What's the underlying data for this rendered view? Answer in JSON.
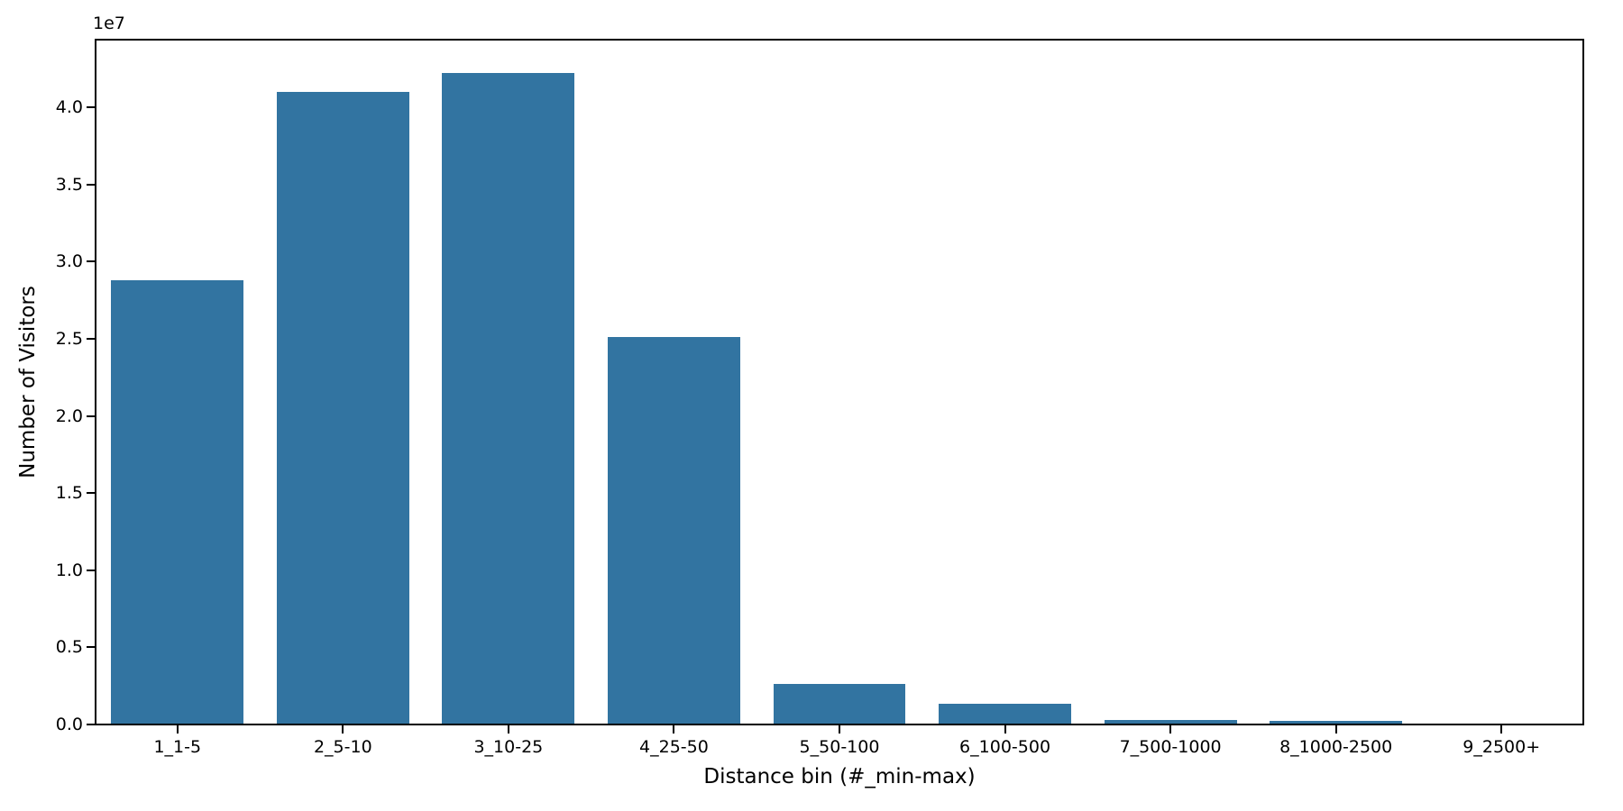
{
  "chart_data": {
    "type": "bar",
    "title": "",
    "xlabel": "Distance bin (#_min-max)",
    "ylabel": "Number of Visitors",
    "y_offset_text": "1e7",
    "categories": [
      "1_1-5",
      "2_5-10",
      "3_10-25",
      "4_25-50",
      "5_50-100",
      "6_100-500",
      "7_500-1000",
      "8_1000-2500",
      "9_2500+"
    ],
    "values": [
      28800000,
      41000000,
      42200000,
      25100000,
      2650000,
      1350000,
      300000,
      250000,
      20000
    ],
    "ylim": [
      0,
      44500000
    ],
    "yticks": [
      0,
      5000000,
      10000000,
      15000000,
      20000000,
      25000000,
      30000000,
      35000000,
      40000000
    ],
    "ytick_labels": [
      "0.0",
      "0.5",
      "1.0",
      "1.5",
      "2.0",
      "2.5",
      "3.0",
      "3.5",
      "4.0"
    ],
    "bar_color": "#3274A1",
    "frame_color": "#000000",
    "text_color": "#000000",
    "background_color": "#ffffff",
    "grid": false,
    "legend": null,
    "bar_relative_width": 0.8
  }
}
